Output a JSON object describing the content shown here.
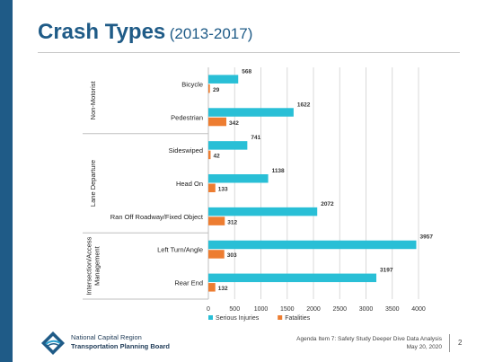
{
  "slide": {
    "title_main": "Crash Types",
    "title_sub": "(2013-2017)",
    "page_number": "2",
    "agenda_note": "Agenda Item 7: Safety Study Deeper Dive Data Analysis",
    "date": "May 20, 2020",
    "org_line1": "National Capital Region",
    "org_line2": "Transportation Planning Board"
  },
  "colors": {
    "brand": "#1f5b87",
    "serious": "#29bfd6",
    "fatal": "#ed7d31"
  },
  "chart_data": {
    "type": "bar",
    "orientation": "horizontal",
    "categories": [
      "Bicycle",
      "Pedestrian",
      "Sideswiped",
      "Head On",
      "Ran Off Roadway/Fixed Object",
      "Left Turn/Angle",
      "Rear End"
    ],
    "groups": [
      {
        "label": "Non-Motorist",
        "categories": [
          "Bicycle",
          "Pedestrian"
        ]
      },
      {
        "label": "Lane Departure",
        "categories": [
          "Sideswiped",
          "Head On",
          "Ran Off Roadway/Fixed Object"
        ]
      },
      {
        "label": "Intersection/Access Management",
        "label_lines": [
          "Intersection/Access",
          "Management"
        ],
        "categories": [
          "Left Turn/Angle",
          "Rear End"
        ]
      }
    ],
    "series": [
      {
        "name": "Serious Injuries",
        "values": [
          568,
          1622,
          741,
          1138,
          2072,
          3957,
          3197
        ]
      },
      {
        "name": "Fatalities",
        "values": [
          29,
          342,
          42,
          133,
          312,
          303,
          132
        ]
      }
    ],
    "xlim": [
      0,
      4000
    ],
    "xticks": [
      0,
      500,
      1000,
      1500,
      2000,
      2500,
      3000,
      3500,
      4000
    ],
    "grid": true,
    "legend_position": "bottom"
  }
}
